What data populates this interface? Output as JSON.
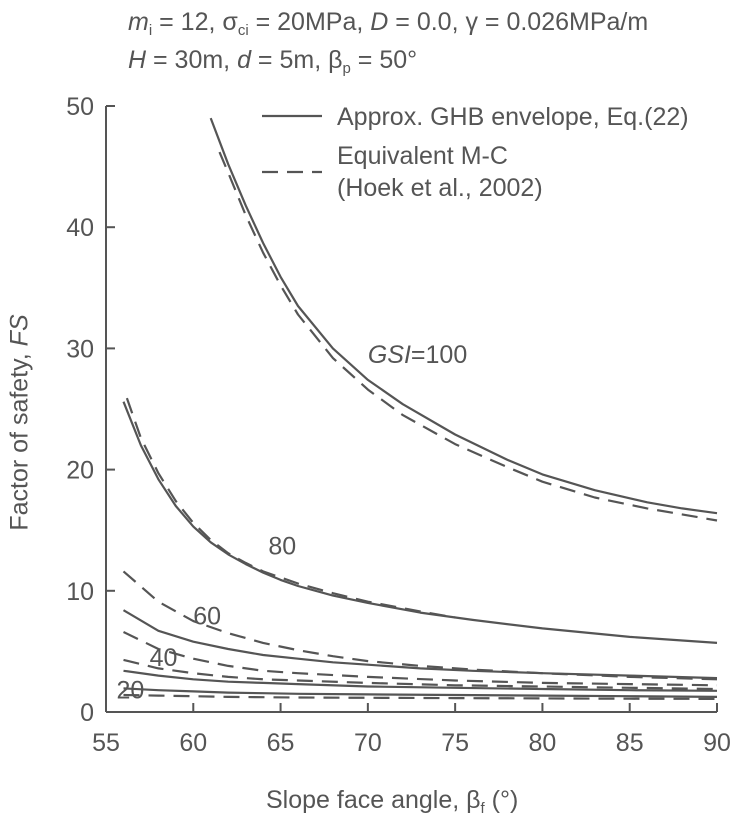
{
  "params": {
    "mi_sym": "m",
    "mi_sub": "i",
    "mi_val": " = 12,  ",
    "sci_sym": "σ",
    "sci_sub": "ci",
    "sci_val": " = 20MPa, ",
    "D_sym": "D",
    "D_val": " = 0.0, ",
    "gamma": "γ = 0.026MPa/m",
    "H_sym": "H",
    "H_val": " = 30m,  ",
    "d_sym": "d",
    "d_val": " = 5m,  ",
    "bp_sym": "β",
    "bp_sub": "p",
    "bp_val": " = 50°"
  },
  "axes": {
    "xlabel_main": "Slope face angle, β",
    "xlabel_sub": "f",
    "xlabel_unit": " (°)",
    "ylabel_main": "Factor of safety, ",
    "ylabel_italic": "FS"
  },
  "chart_data": {
    "type": "line",
    "xlim": [
      55,
      90
    ],
    "ylim": [
      0,
      50
    ],
    "xticks": [
      55,
      60,
      65,
      70,
      75,
      80,
      85,
      90
    ],
    "yticks": [
      0,
      10,
      20,
      30,
      40,
      50
    ],
    "legend": [
      {
        "label": "Approx. GHB envelope, Eq.(22)",
        "style": "solid"
      },
      {
        "label": "Equivalent M-C",
        "label2": "(Hoek et al., 2002)",
        "style": "dashed"
      }
    ],
    "series": [
      {
        "name": "GSI=100 GHB",
        "style": "solid",
        "x": [
          61,
          62,
          63,
          64,
          65,
          66,
          68,
          70,
          72,
          75,
          78,
          80,
          83,
          86,
          88,
          90
        ],
        "y": [
          49,
          45.2,
          41.8,
          38.7,
          35.9,
          33.5,
          30.0,
          27.4,
          25.4,
          22.9,
          20.8,
          19.6,
          18.3,
          17.3,
          16.8,
          16.4
        ]
      },
      {
        "name": "GSI=100 M-C",
        "style": "dashed",
        "x": [
          61.5,
          62,
          63,
          64,
          65,
          66,
          68,
          70,
          72,
          75,
          78,
          80,
          83,
          86,
          88,
          90
        ],
        "y": [
          46.2,
          44.5,
          41.0,
          37.9,
          35.2,
          32.8,
          29.2,
          26.6,
          24.5,
          22.1,
          20.2,
          19.0,
          17.7,
          16.8,
          16.3,
          15.8
        ]
      },
      {
        "name": "GSI=80 GHB",
        "style": "solid",
        "x": [
          56,
          57,
          58,
          59,
          60,
          61,
          62,
          63,
          64,
          65,
          66,
          68,
          70,
          73,
          76,
          80,
          85,
          90
        ],
        "y": [
          25.6,
          22.0,
          19.2,
          17.0,
          15.3,
          14.0,
          13.0,
          12.2,
          11.5,
          10.9,
          10.4,
          9.6,
          9.0,
          8.2,
          7.6,
          6.9,
          6.2,
          5.7
        ]
      },
      {
        "name": "GSI=80 M-C",
        "style": "dashed",
        "x": [
          56.2,
          57,
          58,
          59,
          60,
          61,
          62,
          63,
          64,
          65,
          66,
          68,
          70,
          73,
          75
        ],
        "y": [
          25.9,
          22.6,
          19.7,
          17.4,
          15.6,
          14.2,
          13.1,
          12.3,
          11.6,
          11.1,
          10.6,
          9.8,
          9.1,
          8.3,
          7.8
        ]
      },
      {
        "name": "GSI=60 GHB",
        "style": "solid",
        "x": [
          56,
          58,
          60,
          62,
          64,
          66,
          68,
          70,
          73,
          76,
          80,
          85,
          90
        ],
        "y": [
          8.4,
          6.7,
          5.8,
          5.2,
          4.7,
          4.4,
          4.1,
          3.9,
          3.6,
          3.4,
          3.2,
          3.0,
          2.8
        ]
      },
      {
        "name": "GSI=60 M-C",
        "style": "dashed",
        "x": [
          56,
          58,
          60,
          62,
          64,
          66,
          68,
          70,
          73,
          76,
          80,
          85,
          90
        ],
        "y": [
          11.6,
          9.1,
          7.5,
          6.5,
          5.7,
          5.1,
          4.6,
          4.2,
          3.8,
          3.5,
          3.2,
          2.9,
          2.7
        ]
      },
      {
        "name": "GSI=40 GHB",
        "style": "solid",
        "x": [
          56,
          58,
          60,
          62,
          64,
          66,
          70,
          75,
          80,
          85,
          90
        ],
        "y": [
          3.4,
          3.0,
          2.7,
          2.5,
          2.4,
          2.3,
          2.1,
          2.0,
          1.9,
          1.8,
          1.75
        ]
      },
      {
        "name": "GSI=40 M-C",
        "style": "dashed",
        "x": [
          56,
          58,
          60,
          62,
          64,
          66,
          70,
          75,
          80,
          85,
          90
        ],
        "y": [
          6.6,
          5.2,
          4.4,
          3.8,
          3.4,
          3.2,
          2.9,
          2.6,
          2.4,
          2.3,
          2.2
        ]
      },
      {
        "name": "GSI=40 M-C (lower)",
        "style": "dashed",
        "x": [
          56,
          58,
          60,
          62,
          64,
          66,
          70,
          75,
          80,
          85,
          90
        ],
        "y": [
          4.3,
          3.6,
          3.2,
          2.9,
          2.7,
          2.6,
          2.4,
          2.2,
          2.1,
          2.0,
          1.9
        ]
      },
      {
        "name": "GSI=20 GHB",
        "style": "solid",
        "x": [
          56,
          58,
          60,
          62,
          64,
          66,
          70,
          75,
          80,
          85,
          90
        ],
        "y": [
          1.95,
          1.8,
          1.7,
          1.6,
          1.55,
          1.5,
          1.45,
          1.4,
          1.35,
          1.3,
          1.25
        ]
      },
      {
        "name": "GSI=20 M-C",
        "style": "dashed",
        "x": [
          56,
          58,
          60,
          62,
          64,
          66,
          70,
          75,
          80,
          85,
          90
        ],
        "y": [
          1.4,
          1.35,
          1.3,
          1.25,
          1.22,
          1.2,
          1.17,
          1.15,
          1.12,
          1.1,
          1.08
        ]
      }
    ],
    "annotations": [
      {
        "text": "GSI",
        "suffix": "=100",
        "x": 70.0,
        "y": 28.8
      },
      {
        "text": "80",
        "x": 64.3,
        "y": 13.0
      },
      {
        "text": "60",
        "x": 60.0,
        "y": 7.2
      },
      {
        "text": "40",
        "x": 57.5,
        "y": 3.8
      },
      {
        "text": "20",
        "x": 55.6,
        "y": 1.1
      }
    ],
    "colors": {
      "line": "#555555",
      "axis": "#555555"
    }
  }
}
